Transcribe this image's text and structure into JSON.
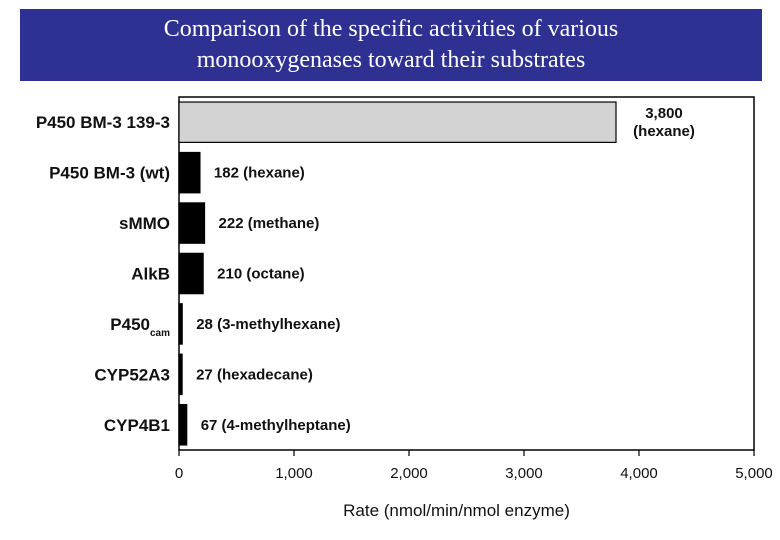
{
  "title_lines": [
    "Comparison of the specific activities of  various",
    "monooxygenases toward their substrates"
  ],
  "chart_data": {
    "type": "bar",
    "orientation": "horizontal",
    "categories": [
      "P450 BM-3 139-3",
      "P450 BM-3 (wt)",
      "s MMO",
      "Alk B",
      "P450cam",
      "CYP52A3",
      "CYP4B1"
    ],
    "category_labels": [
      {
        "main": "P450 BM-3 139-3",
        "sub": ""
      },
      {
        "main": "P450 BM-3 (wt)",
        "sub": ""
      },
      {
        "main": "sMMO",
        "sub": ""
      },
      {
        "main": "AlkB",
        "sub": ""
      },
      {
        "main": "P450",
        "sub": "cam"
      },
      {
        "main": "CYP52A3",
        "sub": ""
      },
      {
        "main": "CYP4B1",
        "sub": ""
      }
    ],
    "values": [
      3800,
      182,
      222,
      210,
      28,
      27,
      67
    ],
    "data_labels": [
      [
        "3,800",
        "(hexane)"
      ],
      [
        "182 (hexane)"
      ],
      [
        "222 (methane)"
      ],
      [
        "210 (octane)"
      ],
      [
        "28 (3-methylhexane)"
      ],
      [
        "27 (hexadecane)"
      ],
      [
        "67 (4-methylheptane)"
      ]
    ],
    "bar_colors": [
      "#d3d3d3",
      "#000000",
      "#000000",
      "#000000",
      "#000000",
      "#000000",
      "#000000"
    ],
    "xlim": [
      0,
      5000
    ],
    "x_ticks": [
      0,
      1000,
      2000,
      3000,
      4000,
      5000
    ],
    "x_tick_labels": [
      "0",
      "1,000",
      "2,000",
      "3,000",
      "4,000",
      "5,000"
    ],
    "xlabel": "Rate (nmol/min/nmol enzyme)",
    "ylabel": "",
    "grid": false,
    "legend": "none"
  }
}
